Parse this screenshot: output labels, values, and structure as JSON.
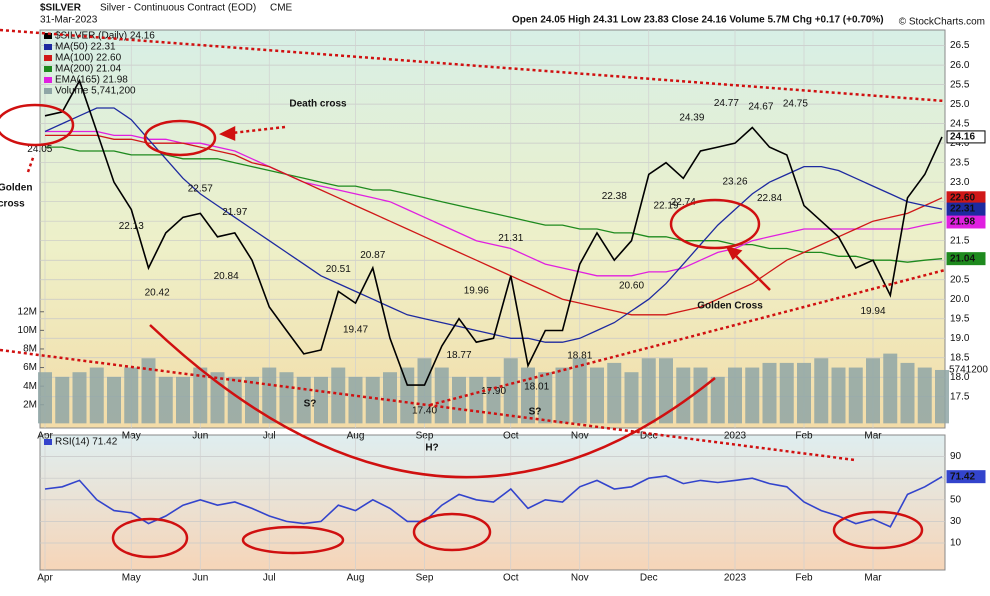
{
  "header": {
    "symbol": "$SILVER",
    "name": "Silver - Continuous Contract (EOD)",
    "exchange": "CME",
    "date": "31-Mar-2023",
    "quote": "Open 24.05 High 24.31 Low 23.83 Close 24.16 Volume 5.7M Chg +0.17 (+0.70%)",
    "credit": "© StockCharts.com"
  },
  "chart_data": [
    {
      "type": "line",
      "categories": [
        "Apr",
        null,
        null,
        null,
        null,
        "May",
        null,
        null,
        null,
        "Jun",
        null,
        null,
        null,
        "Jul",
        null,
        null,
        null,
        null,
        "Aug",
        null,
        null,
        null,
        "Sep",
        null,
        null,
        null,
        null,
        "Oct",
        null,
        null,
        null,
        "Nov",
        null,
        null,
        null,
        "Dec",
        null,
        null,
        null,
        null,
        "2023",
        null,
        null,
        null,
        "Feb",
        null,
        null,
        null,
        "Mar",
        null,
        null,
        null,
        null
      ],
      "ylim": [
        16.7,
        26.9
      ],
      "yticks": [
        17.5,
        {
          "value": 18,
          "label": "18.0"
        },
        18.5,
        {
          "value": 19,
          "label": "19.0"
        },
        19.5,
        {
          "value": 20,
          "label": "20.0"
        },
        20.5,
        {
          "value": 21,
          "label": "21.0"
        },
        21.5,
        {
          "value": 22,
          "label": "22.0"
        },
        22.5,
        {
          "value": 23,
          "label": "23.0"
        },
        23.5,
        {
          "value": 24,
          "label": "24.0"
        },
        24.5,
        {
          "value": 25,
          "label": "25.0"
        },
        25.5,
        {
          "value": 26,
          "label": "26.0"
        },
        26.5
      ],
      "grid": true,
      "y2lim": [
        -500000,
        42300000
      ],
      "y2ticks": [
        {
          "value": 2000000,
          "label": "2M"
        },
        {
          "value": 4000000,
          "label": "4M"
        },
        {
          "value": 6000000,
          "label": "6M"
        },
        {
          "value": 8000000,
          "label": "8M"
        },
        {
          "value": 10000000,
          "label": "10M"
        },
        {
          "value": 12000000,
          "label": "12M"
        }
      ],
      "series": [
        {
          "name": "Volume 5,741,200",
          "type": "bar",
          "axis": "y2",
          "color": "#8fa6a6",
          "last_label": "5741200",
          "values": [
            5500000,
            5000000,
            5500000,
            6000000,
            5000000,
            6000000,
            7000000,
            5000000,
            5000000,
            6000000,
            5500000,
            5000000,
            5000000,
            6000000,
            5500000,
            5000000,
            5000000,
            6000000,
            5000000,
            5000000,
            5500000,
            6000000,
            7000000,
            6000000,
            5000000,
            5000000,
            5000000,
            7000000,
            6000000,
            5500000,
            6000000,
            7000000,
            6000000,
            6500000,
            5500000,
            7000000,
            7000000,
            6000000,
            6000000,
            5000000,
            6000000,
            6000000,
            6500000,
            6500000,
            6500000,
            7000000,
            6000000,
            6000000,
            7000000,
            7500000,
            6500000,
            6000000,
            5741200
          ]
        },
        {
          "name": "MA(200) 21.04",
          "color": "#1e8a1e",
          "last_label": "21.04",
          "values": [
            23.9,
            23.9,
            23.8,
            23.8,
            23.8,
            23.7,
            23.7,
            23.7,
            23.6,
            23.6,
            23.6,
            23.5,
            23.4,
            23.3,
            23.2,
            23.1,
            23.0,
            22.9,
            22.9,
            22.8,
            22.8,
            22.7,
            22.6,
            22.5,
            22.4,
            22.3,
            22.2,
            22.1,
            22.0,
            21.9,
            21.9,
            21.8,
            21.8,
            21.7,
            21.7,
            21.6,
            21.6,
            21.5,
            21.5,
            21.5,
            21.4,
            21.4,
            21.3,
            21.3,
            21.2,
            21.2,
            21.1,
            21.1,
            21.0,
            21.0,
            20.95,
            21.0,
            21.04
          ]
        },
        {
          "name": "EMA(165) 21.98",
          "color": "#e020e0",
          "last_label": "21.98",
          "values": [
            24.3,
            24.3,
            24.3,
            24.3,
            24.2,
            24.2,
            24.1,
            24.1,
            24.0,
            24.0,
            23.9,
            23.8,
            23.6,
            23.4,
            23.2,
            23.0,
            22.9,
            22.8,
            22.7,
            22.6,
            22.5,
            22.3,
            22.1,
            21.9,
            21.7,
            21.5,
            21.4,
            21.3,
            21.1,
            20.9,
            20.8,
            20.7,
            20.6,
            20.6,
            20.6,
            20.7,
            20.7,
            20.8,
            21.0,
            21.2,
            21.3,
            21.5,
            21.6,
            21.7,
            21.8,
            21.8,
            21.8,
            21.8,
            21.8,
            21.8,
            21.8,
            21.9,
            21.98
          ]
        },
        {
          "name": "MA(100) 22.60",
          "color": "#d01818",
          "last_label": "22.60",
          "values": [
            24.2,
            24.2,
            24.2,
            24.2,
            24.1,
            24.1,
            24.0,
            24.0,
            24.0,
            23.9,
            23.8,
            23.7,
            23.5,
            23.4,
            23.2,
            23.0,
            22.8,
            22.6,
            22.4,
            22.2,
            22.0,
            21.8,
            21.6,
            21.4,
            21.2,
            21.0,
            20.8,
            20.6,
            20.4,
            20.2,
            20.0,
            19.9,
            19.8,
            19.7,
            19.6,
            19.6,
            19.6,
            19.7,
            19.8,
            20.0,
            20.2,
            20.4,
            20.7,
            21.0,
            21.2,
            21.4,
            21.6,
            21.8,
            22.0,
            22.1,
            22.2,
            22.4,
            22.6
          ]
        },
        {
          "name": "MA(50) 22.31",
          "color": "#1e2aa0",
          "last_label": "22.31",
          "values": [
            24.3,
            24.5,
            24.7,
            24.9,
            24.9,
            24.6,
            24.1,
            23.6,
            23.1,
            22.7,
            22.4,
            22.1,
            21.8,
            21.5,
            21.2,
            20.9,
            20.6,
            20.4,
            20.2,
            20.0,
            19.8,
            19.6,
            19.5,
            19.4,
            19.3,
            19.2,
            19.1,
            19.0,
            19.0,
            18.9,
            18.9,
            19.0,
            19.2,
            19.4,
            19.7,
            20.0,
            20.4,
            20.9,
            21.4,
            21.9,
            22.3,
            22.7,
            23.0,
            23.2,
            23.4,
            23.4,
            23.3,
            23.1,
            22.9,
            22.7,
            22.5,
            22.4,
            22.31
          ]
        },
        {
          "name": "$SILVER (Daily) 24.16",
          "color": "#000000",
          "last_label": "24.16",
          "values": [
            24.7,
            24.8,
            25.6,
            24.3,
            23.0,
            22.3,
            20.8,
            21.7,
            22.1,
            22.2,
            21.6,
            21.7,
            21.0,
            19.8,
            19.2,
            18.6,
            18.7,
            20.2,
            19.9,
            20.8,
            19.0,
            17.8,
            17.8,
            18.8,
            19.5,
            18.9,
            19.0,
            20.6,
            18.3,
            19.2,
            19.2,
            20.9,
            21.7,
            21.0,
            21.5,
            23.2,
            23.5,
            23.1,
            23.8,
            23.9,
            24.0,
            24.4,
            23.9,
            23.7,
            22.4,
            22.0,
            21.6,
            20.8,
            21.0,
            20.1,
            22.6,
            23.2,
            24.16
          ]
        }
      ],
      "price_labels": {
        "values": [
          24.05,
          22.13,
          20.42,
          22.57,
          21.97,
          20.84,
          20.51,
          20.87,
          19.47,
          18.77,
          19.96,
          17.4,
          17.9,
          21.31,
          18.01,
          18.81,
          22.38,
          20.6,
          22.19,
          22.74,
          24.39,
          24.77,
          24.67,
          23.26,
          24.75,
          22.84,
          19.94
        ],
        "value_labels": [
          "24.05",
          "22.13",
          "20.42",
          "22.57",
          "21.97",
          "20.84",
          "20.51",
          "20.87",
          "19.47",
          "18.77",
          "19.96",
          "17.40",
          "17.90",
          "21.31",
          "18.01",
          "18.81",
          "22.38",
          "20.60",
          "22.19",
          "22.74",
          "24.39",
          "24.77",
          "24.67",
          "23.26",
          "24.75",
          "22.84",
          "19.94"
        ]
      },
      "annotations": [
        "Death cross",
        "Golden",
        "cross",
        "Golden Cross",
        "S?",
        "S?",
        "H?"
      ]
    },
    {
      "type": "line",
      "ylim": [
        -15,
        110
      ],
      "yticks": [
        10,
        30,
        50,
        70,
        90
      ],
      "grid": true,
      "series": [
        {
          "name": "RSI(14) 71.42",
          "color": "#3344cc",
          "last_label": "71.42",
          "values": [
            60,
            62,
            68,
            50,
            40,
            38,
            28,
            35,
            45,
            50,
            45,
            48,
            42,
            35,
            30,
            28,
            30,
            45,
            40,
            50,
            42,
            30,
            30,
            45,
            55,
            50,
            48,
            60,
            42,
            50,
            48,
            62,
            68,
            60,
            62,
            70,
            72,
            65,
            68,
            66,
            68,
            70,
            65,
            62,
            48,
            40,
            35,
            28,
            32,
            25,
            55,
            62,
            71.42
          ]
        }
      ]
    }
  ]
}
